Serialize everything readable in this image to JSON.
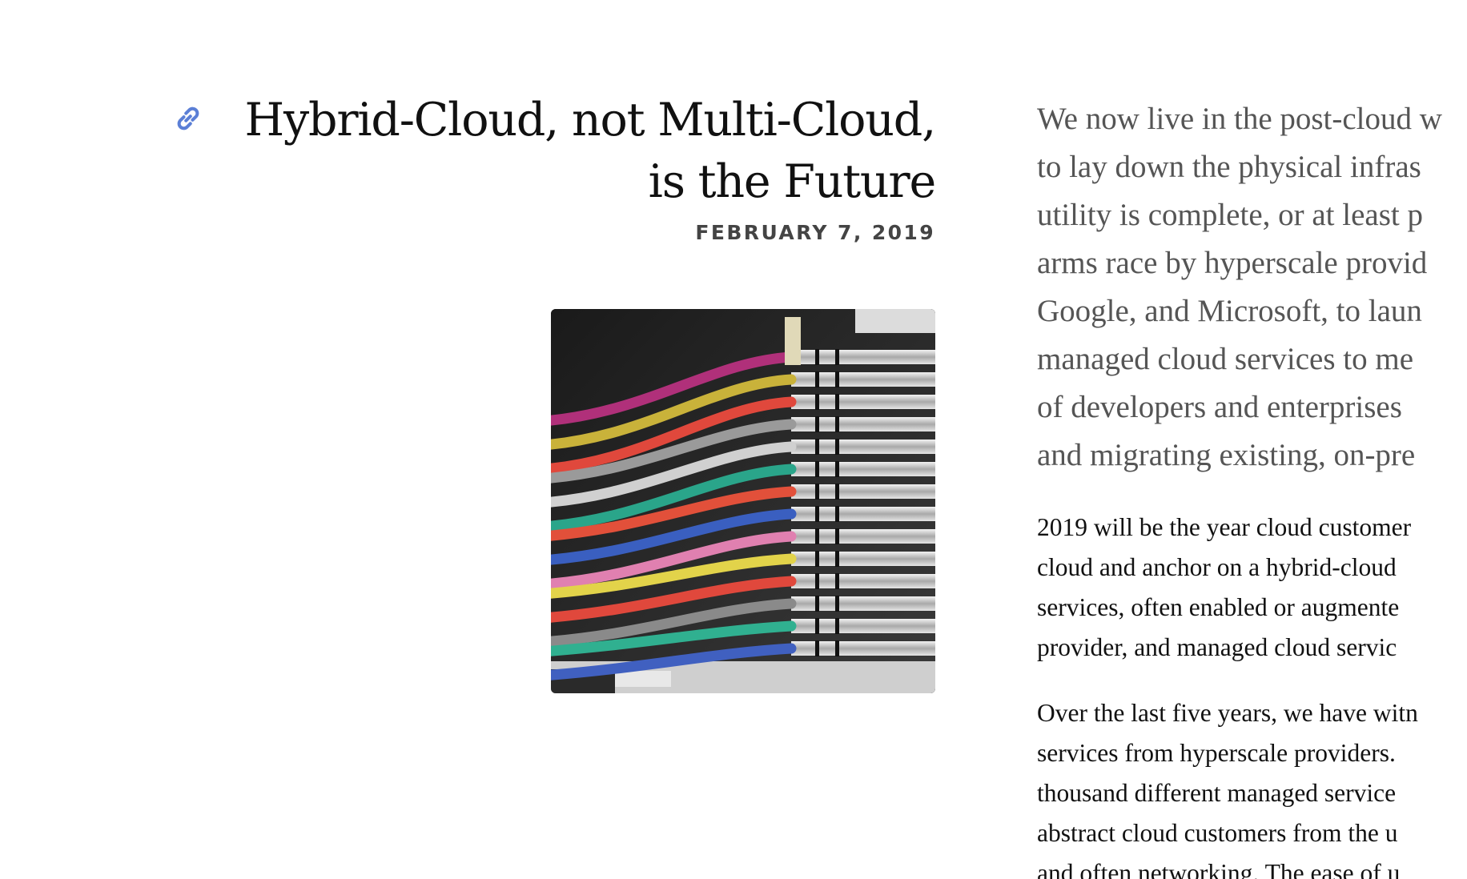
{
  "post": {
    "permalink_icon": "link-icon",
    "title_line1": "Hybrid-Cloud, not Multi-Cloud,",
    "title_line2": "is the Future",
    "date": "FEBRUARY 7, 2019",
    "image_icon": "server-cables-photo"
  },
  "lede": {
    "lines": [
      "We now live in the post-cloud w",
      "to lay down the physical infras",
      "utility is complete, or at least p",
      "arms race by hyperscale provid",
      "Google, and Microsoft, to laun",
      "managed cloud services to me",
      "of developers and enterprises",
      "and migrating existing, on-pre"
    ]
  },
  "paragraphs": [
    {
      "lines": [
        "2019 will be the year cloud customer",
        "cloud and anchor on a hybrid-cloud",
        "services, often enabled or augmente",
        "provider, and managed cloud servic"
      ]
    },
    {
      "lines": [
        "Over the last five years, we have witn",
        "services from hyperscale providers.",
        "thousand different managed service",
        "abstract cloud customers from the u",
        "and often networking. The ease of u"
      ]
    }
  ],
  "colors": {
    "link_accent": "#5b7fd6",
    "title": "#111111",
    "date": "#444444",
    "lede": "#555555",
    "body": "#111111"
  }
}
